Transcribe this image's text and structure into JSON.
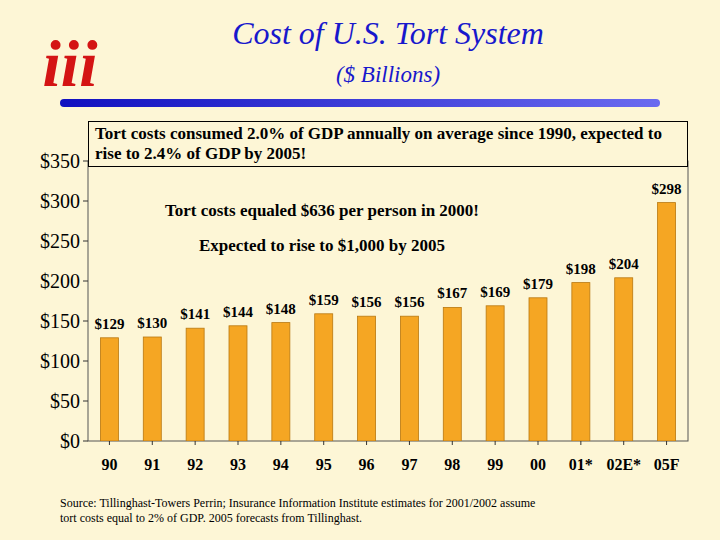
{
  "logo": "iii",
  "chart_data": {
    "type": "bar",
    "title": "Cost of U.S. Tort System",
    "subtitle": "($ Billions)",
    "categories": [
      "90",
      "91",
      "92",
      "93",
      "94",
      "95",
      "96",
      "97",
      "98",
      "99",
      "00",
      "01*",
      "02E*",
      "05F"
    ],
    "values": [
      129,
      130,
      141,
      144,
      148,
      159,
      156,
      156,
      167,
      169,
      179,
      198,
      204,
      298
    ],
    "value_labels": [
      "$129",
      "$130",
      "$141",
      "$144",
      "$148",
      "$159",
      "$156",
      "$156",
      "$167",
      "$169",
      "$179",
      "$198",
      "$204",
      "$298"
    ],
    "data_labels": true,
    "color": "#f5a623",
    "ylim": [
      0,
      350
    ],
    "yticks": [
      {
        "value": 0,
        "label": "$0"
      },
      {
        "value": 50,
        "label": "$50"
      },
      {
        "value": 100,
        "label": "$100"
      },
      {
        "value": 150,
        "label": "$150"
      },
      {
        "value": 200,
        "label": "$200"
      },
      {
        "value": 250,
        "label": "$250"
      },
      {
        "value": 300,
        "label": "$300"
      },
      {
        "value": 350,
        "label": "$350"
      }
    ],
    "grid": false,
    "annotations": [
      "Tort costs consumed 2.0% of GDP annually on average since 1990, expected to rise to 2.4% of GDP by 2005!",
      "Tort costs equaled $636 per person in 2000!",
      "Expected to rise to $1,000 by 2005"
    ],
    "source": "Source:  Tillinghast-Towers Perrin; Insurance Information Institute estimates for 2001/2002 assume tort costs equal to 2% of GDP. 2005 forecasts from Tillinghast."
  }
}
